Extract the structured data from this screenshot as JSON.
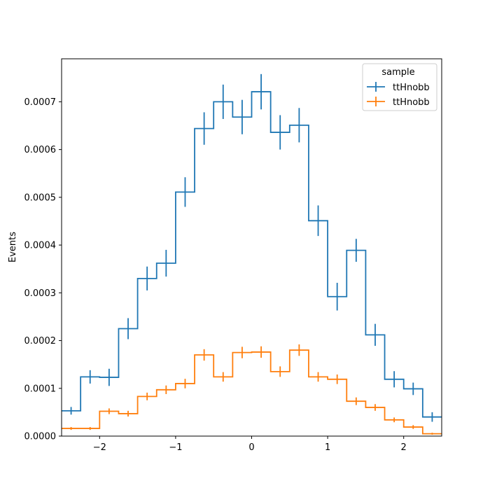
{
  "chart_data": {
    "type": "histogram",
    "title": "",
    "xlabel": "",
    "ylabel": "Events",
    "xlim": [
      -2.5,
      2.5
    ],
    "ylim": [
      0,
      0.00079
    ],
    "x_ticks": [
      -2,
      -1,
      0,
      1,
      2
    ],
    "x_tick_labels": [
      "−2",
      "−1",
      "0",
      "1",
      "2"
    ],
    "y_ticks": [
      0,
      0.0001,
      0.0002,
      0.0003,
      0.0004,
      0.0005,
      0.0006,
      0.0007
    ],
    "y_tick_labels": [
      "0.0000",
      "0.0001",
      "0.0002",
      "0.0003",
      "0.0004",
      "0.0005",
      "0.0006",
      "0.0007"
    ],
    "grid": false,
    "legend": {
      "title": "sample",
      "placement": "top-right"
    },
    "bin_edges": [
      -2.5,
      -2.25,
      -2.0,
      -1.75,
      -1.5,
      -1.25,
      -1.0,
      -0.75,
      -0.5,
      -0.25,
      0.0,
      0.25,
      0.5,
      0.75,
      1.0,
      1.25,
      1.5,
      1.75,
      2.0,
      2.25,
      2.5
    ],
    "series": [
      {
        "name": "ttHnobb",
        "color": "#1f77b4",
        "values": [
          5.3e-05,
          0.000124,
          0.000123,
          0.000225,
          0.00033,
          0.000362,
          0.000511,
          0.000644,
          0.0007,
          0.000668,
          0.000721,
          0.000636,
          0.000651,
          0.000451,
          0.000292,
          0.000389,
          0.000212,
          0.000119,
          9.9e-05,
          4e-05
        ],
        "errors": [
          8e-06,
          1.4e-05,
          1.8e-05,
          2.2e-05,
          2.5e-05,
          2.8e-05,
          3.1e-05,
          3.4e-05,
          3.6e-05,
          3.6e-05,
          3.7e-05,
          3.6e-05,
          3.6e-05,
          3.2e-05,
          2.9e-05,
          2.4e-05,
          2.3e-05,
          1.7e-05,
          1.3e-05,
          1e-05
        ]
      },
      {
        "name": "ttHnobb",
        "color": "#ff7f0e",
        "values": [
          1.6e-05,
          1.6e-05,
          5.2e-05,
          4.7e-05,
          8.3e-05,
          9.7e-05,
          0.00011,
          0.00017,
          0.000124,
          0.000175,
          0.000176,
          0.000135,
          0.00018,
          0.000124,
          0.000119,
          7.3e-05,
          6e-05,
          3.4e-05,
          1.9e-05,
          5e-06
        ],
        "errors": [
          3e-06,
          3e-06,
          6e-06,
          6e-06,
          8e-06,
          9e-06,
          1e-05,
          1.2e-05,
          1e-05,
          1.2e-05,
          1.2e-05,
          1.1e-05,
          1.2e-05,
          1e-05,
          1e-05,
          8e-06,
          7e-06,
          5e-06,
          4e-06,
          2e-06
        ]
      }
    ]
  }
}
